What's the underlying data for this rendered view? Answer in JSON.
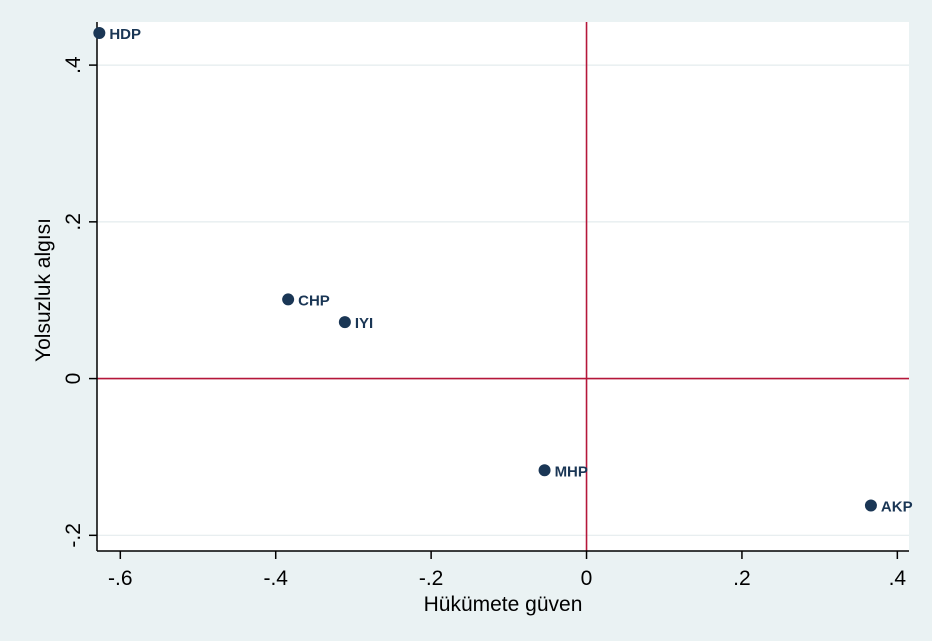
{
  "chart_data": {
    "type": "scatter",
    "title": "",
    "xlabel": "Hükümete güven",
    "ylabel": "Yolsuzluk algısı",
    "xlim": [
      -0.63,
      0.415
    ],
    "ylim": [
      -0.22,
      0.455
    ],
    "xticks": [
      -0.6,
      -0.4,
      -0.2,
      0,
      0.2,
      0.4
    ],
    "xtick_labels": [
      "-.6",
      "-.4",
      "-.2",
      "0",
      ".2",
      ".4"
    ],
    "yticks": [
      -0.2,
      0,
      0.2,
      0.4
    ],
    "ytick_labels": [
      "-.2",
      "0",
      ".2",
      ".4"
    ],
    "grid": true,
    "reference_lines": {
      "x": 0,
      "y": 0,
      "color": "#b5173a"
    },
    "points": [
      {
        "label": "HDP",
        "x": -0.627,
        "y": 0.441
      },
      {
        "label": "CHP",
        "x": -0.384,
        "y": 0.101
      },
      {
        "label": "IYI",
        "x": -0.311,
        "y": 0.072
      },
      {
        "label": "MHP",
        "x": -0.054,
        "y": -0.117
      },
      {
        "label": "AKP",
        "x": 0.366,
        "y": -0.162
      }
    ],
    "colors": {
      "background": "#eaf2f3",
      "plot_area": "#ffffff",
      "grid": "#e4ecee",
      "marker": "#1a3655",
      "reference_line": "#b5173a"
    }
  }
}
